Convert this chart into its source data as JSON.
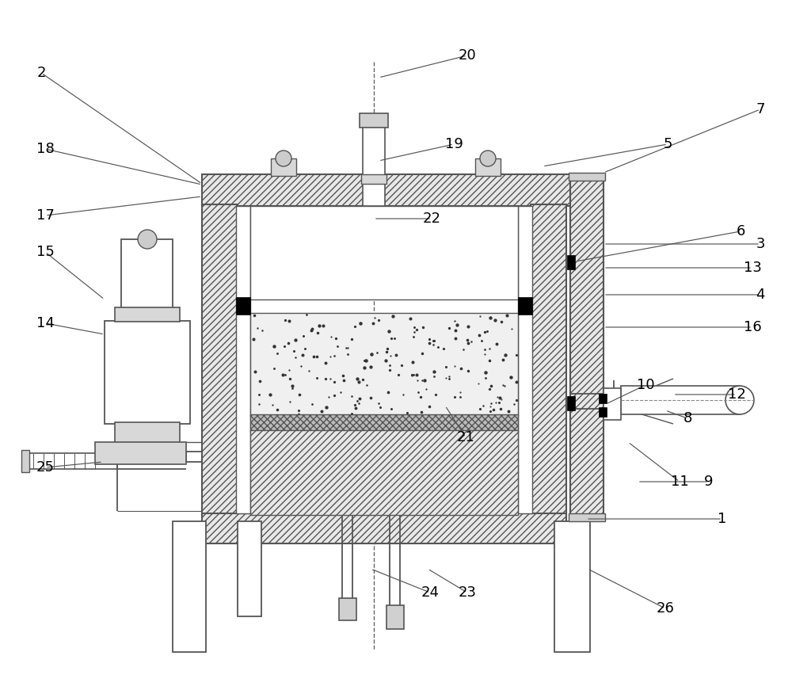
{
  "bg": "#ffffff",
  "lc": "#555555",
  "hfc": "#e8e8e8",
  "figsize": [
    10.0,
    8.76
  ],
  "dpi": 100,
  "labels": [
    [
      "1",
      912,
      655
    ],
    [
      "2",
      52,
      92
    ],
    [
      "3",
      960,
      308
    ],
    [
      "4",
      960,
      372
    ],
    [
      "5",
      843,
      182
    ],
    [
      "6",
      935,
      292
    ],
    [
      "7",
      960,
      138
    ],
    [
      "8",
      868,
      528
    ],
    [
      "9",
      895,
      608
    ],
    [
      "10",
      815,
      486
    ],
    [
      "11",
      858,
      608
    ],
    [
      "12",
      930,
      498
    ],
    [
      "13",
      950,
      338
    ],
    [
      "14",
      57,
      408
    ],
    [
      "15",
      57,
      318
    ],
    [
      "16",
      950,
      413
    ],
    [
      "17",
      57,
      272
    ],
    [
      "18",
      57,
      188
    ],
    [
      "19",
      573,
      182
    ],
    [
      "20",
      590,
      70
    ],
    [
      "21",
      588,
      552
    ],
    [
      "22",
      545,
      276
    ],
    [
      "23",
      590,
      748
    ],
    [
      "24",
      543,
      748
    ],
    [
      "25",
      57,
      590
    ],
    [
      "26",
      840,
      768
    ]
  ],
  "leaders": [
    [
      "1",
      912,
      655,
      740,
      655
    ],
    [
      "2",
      52,
      92,
      255,
      232
    ],
    [
      "3",
      960,
      308,
      762,
      308
    ],
    [
      "4",
      960,
      372,
      762,
      372
    ],
    [
      "5",
      843,
      182,
      685,
      210
    ],
    [
      "6",
      935,
      292,
      727,
      330
    ],
    [
      "7",
      960,
      138,
      762,
      218
    ],
    [
      "8",
      868,
      528,
      840,
      518
    ],
    [
      "9",
      895,
      608,
      805,
      608
    ],
    [
      "10",
      815,
      486,
      765,
      510
    ],
    [
      "11",
      858,
      608,
      793,
      558
    ],
    [
      "12",
      930,
      498,
      850,
      498
    ],
    [
      "13",
      950,
      338,
      762,
      338
    ],
    [
      "14",
      57,
      408,
      132,
      422
    ],
    [
      "15",
      57,
      318,
      132,
      378
    ],
    [
      "16",
      950,
      413,
      762,
      413
    ],
    [
      "17",
      57,
      272,
      255,
      248
    ],
    [
      "18",
      57,
      188,
      255,
      233
    ],
    [
      "19",
      573,
      182,
      478,
      203
    ],
    [
      "20",
      590,
      70,
      478,
      98
    ],
    [
      "21",
      588,
      552,
      562,
      512
    ],
    [
      "22",
      545,
      276,
      472,
      276
    ],
    [
      "23",
      590,
      748,
      540,
      718
    ],
    [
      "24",
      543,
      748,
      468,
      718
    ],
    [
      "25",
      57,
      590,
      130,
      583
    ],
    [
      "26",
      840,
      768,
      742,
      718
    ]
  ]
}
